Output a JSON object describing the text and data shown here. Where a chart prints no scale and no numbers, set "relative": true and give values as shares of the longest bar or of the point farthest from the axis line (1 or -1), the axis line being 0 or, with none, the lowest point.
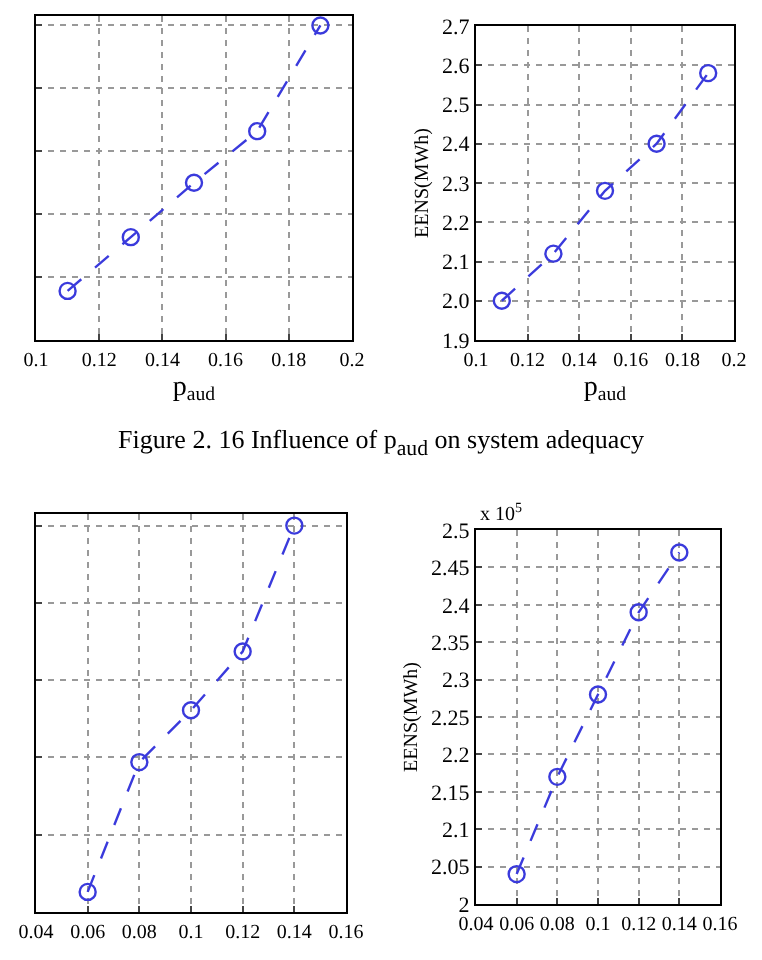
{
  "chart_data": [
    {
      "type": "line",
      "xlabel": "p$_{aud}$",
      "relative": true,
      "tick_labels": "x",
      "x": [
        0.11,
        0.13,
        0.15,
        0.17,
        0.19
      ],
      "xlim": [
        0.1,
        0.2
      ],
      "xticks": [
        0.1,
        0.12,
        0.14,
        0.16,
        0.18,
        0.2
      ],
      "series": [
        {
          "color": "#3a3adc",
          "values": [
            0.156,
            0.327,
            0.5,
            0.664,
            1
          ]
        }
      ],
      "grid": true,
      "marker": "circle",
      "line_style": "dashed",
      "annotations": [
        "Figure 2. 16 Influence of p$_{aud}$ on system adequacy"
      ]
    },
    {
      "type": "line",
      "xlabel": "p$_{aud}$",
      "ylabel": "EENS(MWh)",
      "x": [
        0.11,
        0.13,
        0.15,
        0.17,
        0.19
      ],
      "xlim": [
        0.1,
        0.2
      ],
      "xticks": [
        0.1,
        0.12,
        0.14,
        0.16,
        0.18,
        0.2
      ],
      "ylim": [
        1.9,
        2.7
      ],
      "yticks": [
        1.9,
        {
          "value": 2,
          "label": "2.0"
        },
        2.1,
        2.2,
        2.3,
        2.4,
        2.5,
        2.6,
        2.7
      ],
      "series": [
        {
          "color": "#3a3adc",
          "values": [
            2.0,
            2.12,
            2.28,
            2.4,
            2.58
          ]
        }
      ],
      "grid": true,
      "marker": "circle",
      "line_style": "dashed"
    },
    {
      "type": "line",
      "relative": true,
      "tick_labels": "x",
      "x": [
        0.06,
        0.08,
        0.1,
        0.12,
        0.14
      ],
      "xlim": [
        0.04,
        0.16
      ],
      "xticks": [
        0.04,
        0.06,
        0.08,
        0.1,
        0.12,
        0.14,
        0.16
      ],
      "series": [
        {
          "color": "#3a3adc",
          "values": [
            0.052,
            0.388,
            0.522,
            0.674,
            1
          ]
        }
      ],
      "grid": true,
      "marker": "circle",
      "line_style": "dashed"
    },
    {
      "type": "line",
      "ylabel": "EENS(MWh)",
      "x": [
        0.06,
        0.08,
        0.1,
        0.12,
        0.14
      ],
      "xlim": [
        0.04,
        0.16
      ],
      "xticks": [
        0.04,
        0.06,
        0.08,
        0.1,
        0.12,
        0.14,
        0.16
      ],
      "ylim": [
        2,
        2.5
      ],
      "yticks": [
        2,
        2.05,
        2.1,
        2.15,
        2.2,
        2.25,
        2.3,
        2.35,
        2.4,
        2.45,
        2.5
      ],
      "series": [
        {
          "color": "#3a3adc",
          "values": [
            2.04,
            2.17,
            2.28,
            2.39,
            2.47
          ]
        }
      ],
      "grid": true,
      "marker": "circle",
      "line_style": "dashed",
      "annotations": [
        "x 10$^{5}$"
      ]
    }
  ]
}
